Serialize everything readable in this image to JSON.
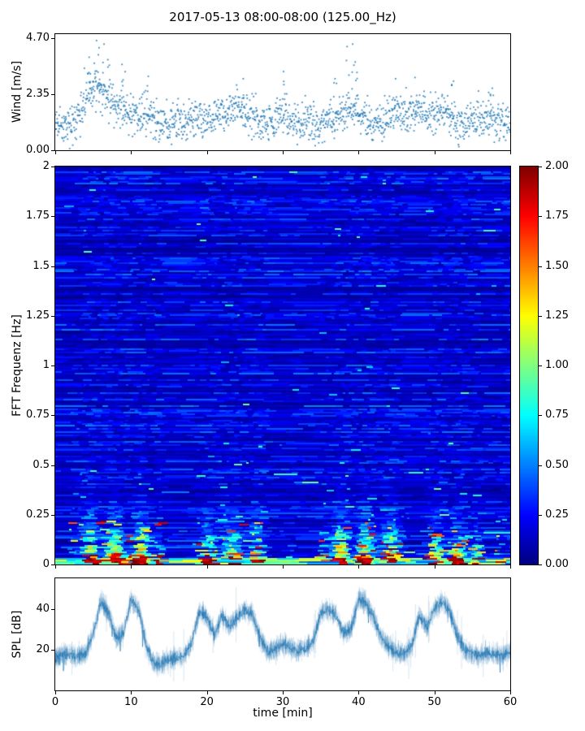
{
  "figure": {
    "title": "2017-05-13 08:00-08:00 (125.00_Hz)",
    "background": "#ffffff"
  },
  "xaxis": {
    "label": "time [min]",
    "range": [
      0,
      60
    ],
    "tick_labels": [
      "0",
      "10",
      "20",
      "30",
      "40",
      "50",
      "60"
    ],
    "tick_values": [
      0,
      10,
      20,
      30,
      40,
      50,
      60
    ]
  },
  "chart_data": [
    {
      "type": "scatter",
      "name": "wind-speed",
      "ylabel": "Wind [m/s]",
      "marker_color": "#1f77b4",
      "ylim": [
        0,
        4.87
      ],
      "ytick_labels": [
        "0.00",
        "2.35",
        "4.70"
      ],
      "ytick_values": [
        0,
        2.35,
        4.7
      ],
      "n_points": 1600,
      "spread": 0.45,
      "mean_by_minute": [
        1.1,
        1.1,
        1.15,
        1.5,
        2.2,
        2.6,
        2.4,
        2.2,
        2.0,
        1.7,
        1.6,
        1.4,
        1.6,
        1.3,
        1.2,
        1.1,
        1.3,
        1.2,
        1.3,
        1.2,
        1.3,
        1.4,
        1.5,
        1.6,
        1.8,
        1.6,
        1.4,
        1.2,
        1.1,
        1.3,
        1.5,
        1.2,
        1.1,
        1.2,
        1.1,
        1.2,
        1.1,
        1.3,
        1.6,
        2.0,
        1.6,
        1.3,
        1.1,
        1.2,
        1.5,
        1.6,
        1.5,
        1.6,
        1.7,
        1.4,
        1.5,
        1.6,
        1.4,
        1.2,
        1.1,
        1.3,
        1.2,
        1.4,
        1.2,
        1.1,
        1.0
      ],
      "outliers": [
        {
          "t": 5.2,
          "y": 4.6
        },
        {
          "t": 5.8,
          "y": 4.3
        },
        {
          "t": 6.3,
          "y": 4.45
        },
        {
          "t": 4.6,
          "y": 3.9
        },
        {
          "t": 7.1,
          "y": 3.8
        },
        {
          "t": 9.0,
          "y": 3.6
        },
        {
          "t": 12.4,
          "y": 3.1
        },
        {
          "t": 24.6,
          "y": 3.0
        },
        {
          "t": 30.2,
          "y": 3.3
        },
        {
          "t": 36.9,
          "y": 3.0
        },
        {
          "t": 38.6,
          "y": 4.35
        },
        {
          "t": 39.2,
          "y": 4.45
        },
        {
          "t": 39.8,
          "y": 3.7
        },
        {
          "t": 44.9,
          "y": 3.0
        },
        {
          "t": 47.6,
          "y": 3.05
        },
        {
          "t": 52.3,
          "y": 2.9
        },
        {
          "t": 57.4,
          "y": 2.6
        }
      ]
    },
    {
      "type": "heatmap",
      "name": "fft-spectrogram",
      "ylabel": "FFT Frequenz [Hz]",
      "ylim": [
        0,
        2
      ],
      "ytick_labels": [
        "0",
        "0.25",
        "0.5",
        "0.75",
        "1",
        "1.25",
        "1.5",
        "1.75",
        "2"
      ],
      "ytick_values": [
        0,
        0.25,
        0.5,
        0.75,
        1,
        1.25,
        1.5,
        1.75,
        2
      ],
      "colormap": "jet",
      "value_range": [
        0,
        2
      ],
      "background_level": [
        0.05,
        0.3
      ],
      "events": [
        {
          "start": 1.5,
          "end": 13.5,
          "peak": 2.3,
          "freq_scale": 0.1
        },
        {
          "start": 17.5,
          "end": 27.5,
          "peak": 2.2,
          "freq_scale": 0.09
        },
        {
          "start": 29.5,
          "end": 31.0,
          "peak": 1.2,
          "freq_scale": 0.05
        },
        {
          "start": 34.5,
          "end": 45.5,
          "peak": 2.4,
          "freq_scale": 0.1
        },
        {
          "start": 47.5,
          "end": 55.5,
          "peak": 2.2,
          "freq_scale": 0.09
        },
        {
          "start": 57.0,
          "end": 59.0,
          "peak": 1.0,
          "freq_scale": 0.04
        }
      ],
      "colorbar": {
        "range": [
          0,
          2
        ],
        "tick_labels": [
          "0.00",
          "0.25",
          "0.50",
          "0.75",
          "1.00",
          "1.25",
          "1.50",
          "1.75",
          "2.00"
        ],
        "tick_values": [
          0,
          0.25,
          0.5,
          0.75,
          1,
          1.25,
          1.5,
          1.75,
          2
        ]
      }
    },
    {
      "type": "line",
      "name": "spl",
      "ylabel": "SPL [dB]",
      "line_color": "#1f77b4",
      "ylim": [
        0,
        55.2
      ],
      "ytick_labels": [
        "20",
        "40"
      ],
      "ytick_values": [
        20,
        40
      ],
      "noise_db": 2.5,
      "envelope_by_minute": [
        16,
        18,
        17,
        17,
        18,
        28,
        44,
        38,
        26,
        28,
        45,
        40,
        22,
        13,
        13,
        15,
        16,
        17,
        24,
        39,
        36,
        27,
        37,
        31,
        36,
        40,
        37,
        26,
        19,
        20,
        23,
        21,
        19,
        21,
        24,
        38,
        40,
        37,
        28,
        30,
        45,
        43,
        36,
        26,
        21,
        19,
        18,
        22,
        37,
        31,
        40,
        44,
        39,
        27,
        20,
        18,
        17,
        19,
        18,
        17,
        19
      ]
    }
  ]
}
